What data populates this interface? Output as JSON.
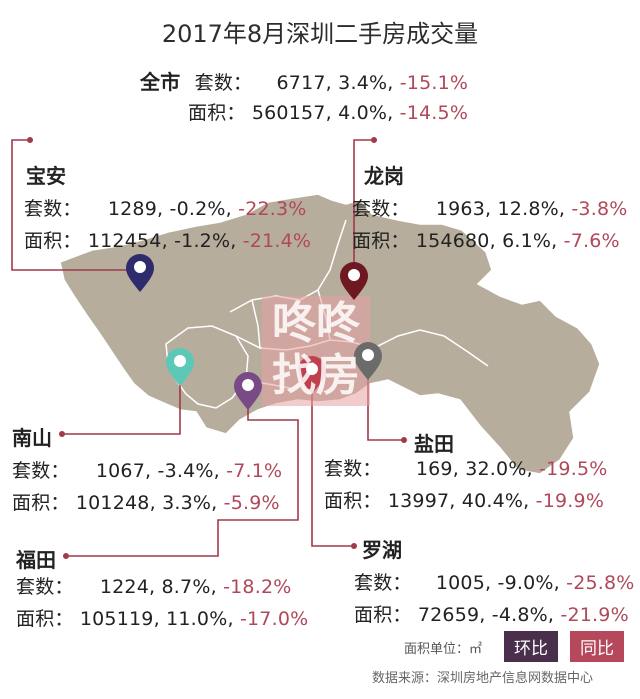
{
  "title": "2017年8月深圳二手房成交量",
  "total": {
    "name": "全市",
    "units_label": "套数：",
    "units_value": "6717,",
    "units_mom": "3.4%,",
    "units_yoy": "-15.1%",
    "area_label": "面积：",
    "area_value": "560157,",
    "area_mom": "4.0%,",
    "area_yoy": "-14.5%"
  },
  "districts": {
    "baoan": {
      "name": "宝安",
      "units_label": "套数：",
      "units_value": "1289,",
      "units_mom": "-0.2%,",
      "units_yoy": "-22.3%",
      "area_label": "面积：",
      "area_value": "112454,",
      "area_mom": "-1.2%,",
      "area_yoy": "-21.4%",
      "pin_color": "#2e2c6c"
    },
    "longgang": {
      "name": "龙岗",
      "units_label": "套数：",
      "units_value": "1963,",
      "units_mom": "12.8%,",
      "units_yoy": "-3.8%",
      "area_label": "面积：",
      "area_value": "154680,",
      "area_mom": "6.1%,",
      "area_yoy": "-7.6%",
      "pin_color": "#6e1822"
    },
    "nanshan": {
      "name": "南山",
      "units_label": "套数：",
      "units_value": "1067,",
      "units_mom": "-3.4%,",
      "units_yoy": "-7.1%",
      "area_label": "面积：",
      "area_value": "101248,",
      "area_mom": "3.3%,",
      "area_yoy": "-5.9%",
      "pin_color": "#5cc9b8"
    },
    "yantian": {
      "name": "盐田",
      "units_label": "套数：",
      "units_value": "169,",
      "units_mom": "32.0%,",
      "units_yoy": "-19.5%",
      "area_label": "面积：",
      "area_value": "13997,",
      "area_mom": "40.4%,",
      "area_yoy": "-19.9%",
      "pin_color": "#6b6b6b"
    },
    "futian": {
      "name": "福田",
      "units_label": "套数：",
      "units_value": "1224,",
      "units_mom": "8.7%,",
      "units_yoy": "-18.2%",
      "area_label": "面积：",
      "area_value": "105119,",
      "area_mom": "11.0%,",
      "area_yoy": "-17.0%",
      "pin_color": "#7a4a86"
    },
    "luohu": {
      "name": "罗湖",
      "units_label": "套数：",
      "units_value": "1005,",
      "units_mom": "-9.0%,",
      "units_yoy": "-25.8%",
      "area_label": "面积：",
      "area_value": "72659,",
      "area_mom": "-4.8%,",
      "area_yoy": "-21.9%",
      "pin_color": "#c0404e"
    }
  },
  "legend": {
    "unit_note": "面积单位：㎡",
    "mom_label": "环比",
    "mom_color": "#4a2f4c",
    "yoy_label": "同比",
    "yoy_color": "#b5485b"
  },
  "watermark": {
    "line1": "咚咚",
    "line2": "找房"
  },
  "source": "数据来源：深圳房地产信息网数据中心",
  "colors": {
    "map_fill": "#b7ad9c",
    "leader_line": "#a13a48"
  }
}
